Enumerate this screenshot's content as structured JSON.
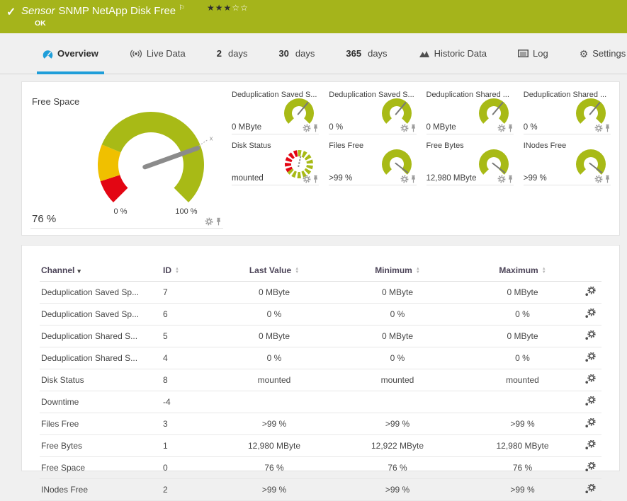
{
  "header": {
    "title_prefix": "Sensor",
    "title": "SNMP NetApp Disk Free",
    "status": "OK",
    "rating": {
      "filled": 3,
      "total": 5
    }
  },
  "tabs": [
    {
      "label": "Overview",
      "icon": "gauge",
      "active": true
    },
    {
      "label": "Live Data",
      "icon": "broadcast",
      "active": false
    },
    {
      "strong": "2",
      "label": "days",
      "active": false
    },
    {
      "strong": "30",
      "label": "days",
      "active": false
    },
    {
      "strong": "365",
      "label": "days",
      "active": false
    },
    {
      "label": "Historic Data",
      "icon": "chart",
      "active": false
    },
    {
      "label": "Log",
      "icon": "log",
      "active": false
    },
    {
      "label": "Settings",
      "icon": "gear",
      "active": false
    }
  ],
  "free_space_gauge": {
    "title": "Free Space",
    "value": "76 %",
    "percent": 76,
    "scale_min_label": "0 %",
    "scale_max_label": "100 %",
    "marker": "x",
    "segments": [
      {
        "from": 0,
        "to": 10,
        "color": "#e30613"
      },
      {
        "from": 10,
        "to": 25,
        "color": "#f0c000"
      },
      {
        "from": 25,
        "to": 100,
        "color": "#a8ba16"
      }
    ]
  },
  "mini_gauges": [
    {
      "title": "Deduplication Saved S...",
      "value": "0 MByte",
      "style": "needle-up",
      "needle_deg": 50
    },
    {
      "title": "Deduplication Saved S...",
      "value": "0 %",
      "style": "needle-up",
      "needle_deg": 50
    },
    {
      "title": "Deduplication Shared ...",
      "value": "0 MByte",
      "style": "needle-up",
      "needle_deg": 50
    },
    {
      "title": "Deduplication Shared ...",
      "value": "0 %",
      "style": "needle-up",
      "needle_deg": 50
    },
    {
      "title": "Disk Status",
      "value": "mounted",
      "style": "segmented",
      "needle_deg": 78
    },
    {
      "title": "Files Free",
      "value": ">99 %",
      "style": "needle-down",
      "needle_deg": -38
    },
    {
      "title": "Free Bytes",
      "value": "12,980 MByte",
      "style": "needle-down",
      "needle_deg": -38
    },
    {
      "title": "INodes Free",
      "value": ">99 %",
      "style": "needle-down",
      "needle_deg": -38
    }
  ],
  "colors": {
    "header_green": "#a5b41b",
    "gauge_green": "#a8ba16",
    "gauge_yellow": "#f0c000",
    "gauge_red": "#e30613",
    "accent_blue": "#1f9ed9",
    "needle_gray": "#8b8b8b"
  },
  "table": {
    "columns": [
      {
        "label": "Channel",
        "sort": "desc",
        "align": "left"
      },
      {
        "label": "ID",
        "sort": "both",
        "align": "left"
      },
      {
        "label": "Last Value",
        "sort": "both",
        "align": "center"
      },
      {
        "label": "Minimum",
        "sort": "both",
        "align": "center"
      },
      {
        "label": "Maximum",
        "sort": "both",
        "align": "center"
      },
      {
        "label": "",
        "sort": "none",
        "align": "center"
      }
    ],
    "rows": [
      {
        "channel": "Deduplication Saved Sp...",
        "id": "7",
        "last": "0 MByte",
        "min": "0 MByte",
        "max": "0 MByte"
      },
      {
        "channel": "Deduplication Saved Sp...",
        "id": "6",
        "last": "0 %",
        "min": "0 %",
        "max": "0 %"
      },
      {
        "channel": "Deduplication Shared S...",
        "id": "5",
        "last": "0 MByte",
        "min": "0 MByte",
        "max": "0 MByte"
      },
      {
        "channel": "Deduplication Shared S...",
        "id": "4",
        "last": "0 %",
        "min": "0 %",
        "max": "0 %"
      },
      {
        "channel": "Disk Status",
        "id": "8",
        "last": "mounted",
        "min": "mounted",
        "max": "mounted"
      },
      {
        "channel": "Downtime",
        "id": "-4",
        "last": "",
        "min": "",
        "max": ""
      },
      {
        "channel": "Files Free",
        "id": "3",
        "last": ">99 %",
        "min": ">99 %",
        "max": ">99 %"
      },
      {
        "channel": "Free Bytes",
        "id": "1",
        "last": "12,980 MByte",
        "min": "12,922 MByte",
        "max": "12,980 MByte"
      },
      {
        "channel": "Free Space",
        "id": "0",
        "last": "76 %",
        "min": "76 %",
        "max": "76 %"
      },
      {
        "channel": "INodes Free",
        "id": "2",
        "last": ">99 %",
        "min": ">99 %",
        "max": ">99 %"
      }
    ]
  }
}
